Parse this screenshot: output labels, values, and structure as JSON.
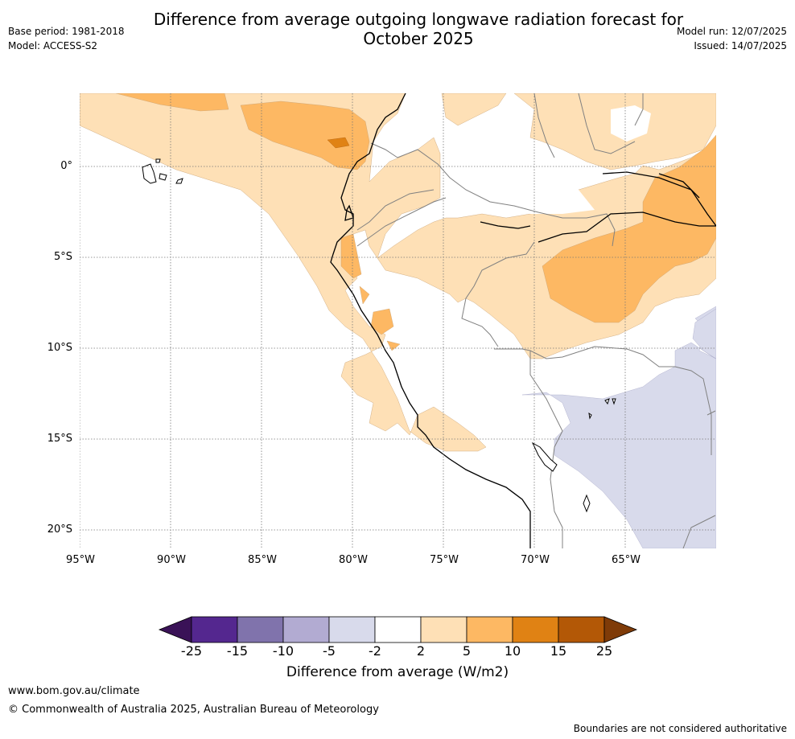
{
  "title": "Difference from average outgoing longwave radiation forecast for October 2025",
  "title_line1": "Difference from average outgoing longwave radiation forecast for",
  "title_line2": "October 2025",
  "meta": {
    "base_period": "Base period: 1981-2018",
    "model": "Model: ACCESS-S2",
    "model_run": "Model run: 12/07/2025",
    "issued": "Issued: 14/07/2025"
  },
  "map": {
    "lon_ticks": [
      "95°W",
      "90°W",
      "85°W",
      "80°W",
      "75°W",
      "70°W",
      "65°W"
    ],
    "lat_ticks": [
      "0°",
      "5°S",
      "10°S",
      "15°S",
      "20°S"
    ]
  },
  "colorbar": {
    "title": "Difference from average (W/m2)",
    "labels": [
      "-25",
      "-15",
      "-10",
      "-5",
      "-2",
      "2",
      "5",
      "10",
      "15",
      "25"
    ],
    "colors": [
      "#3a1257",
      "#54278f",
      "#8073ac",
      "#b2abd2",
      "#d8daeb",
      "#ffffff",
      "#fee0b6",
      "#fdb863",
      "#e08214",
      "#b35806",
      "#7f3b08"
    ]
  },
  "footer": {
    "url": "www.bom.gov.au/climate",
    "copyright": "© Commonwealth of Australia 2025, Australian Bureau of Meteorology",
    "disclaimer": "Boundaries are not considered authoritative"
  }
}
